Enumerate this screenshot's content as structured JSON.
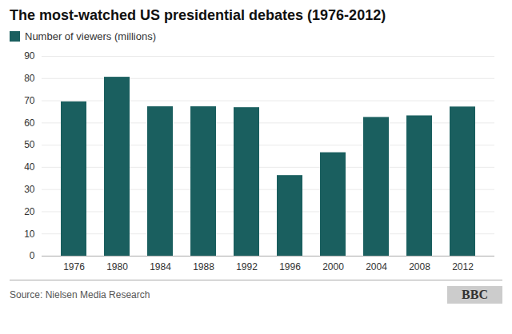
{
  "chart_data": {
    "type": "bar",
    "title": "The most-watched US presidential debates (1976-2012)",
    "categories": [
      "1976",
      "1980",
      "1984",
      "1988",
      "1992",
      "1996",
      "2000",
      "2004",
      "2008",
      "2012"
    ],
    "series": [
      {
        "name": "Number of viewers (millions)",
        "color": "#1a5f5f",
        "values": [
          69.5,
          80.6,
          67.3,
          67.3,
          66.9,
          36.3,
          46.6,
          62.5,
          63.2,
          67.2
        ]
      }
    ],
    "ylim": [
      0,
      90
    ],
    "yticks": [
      0,
      10,
      20,
      30,
      40,
      50,
      60,
      70,
      80,
      90
    ],
    "grid": true,
    "legend": "top",
    "caption": "Source: Nielsen Media Research",
    "annotations": [
      "BBC"
    ]
  }
}
